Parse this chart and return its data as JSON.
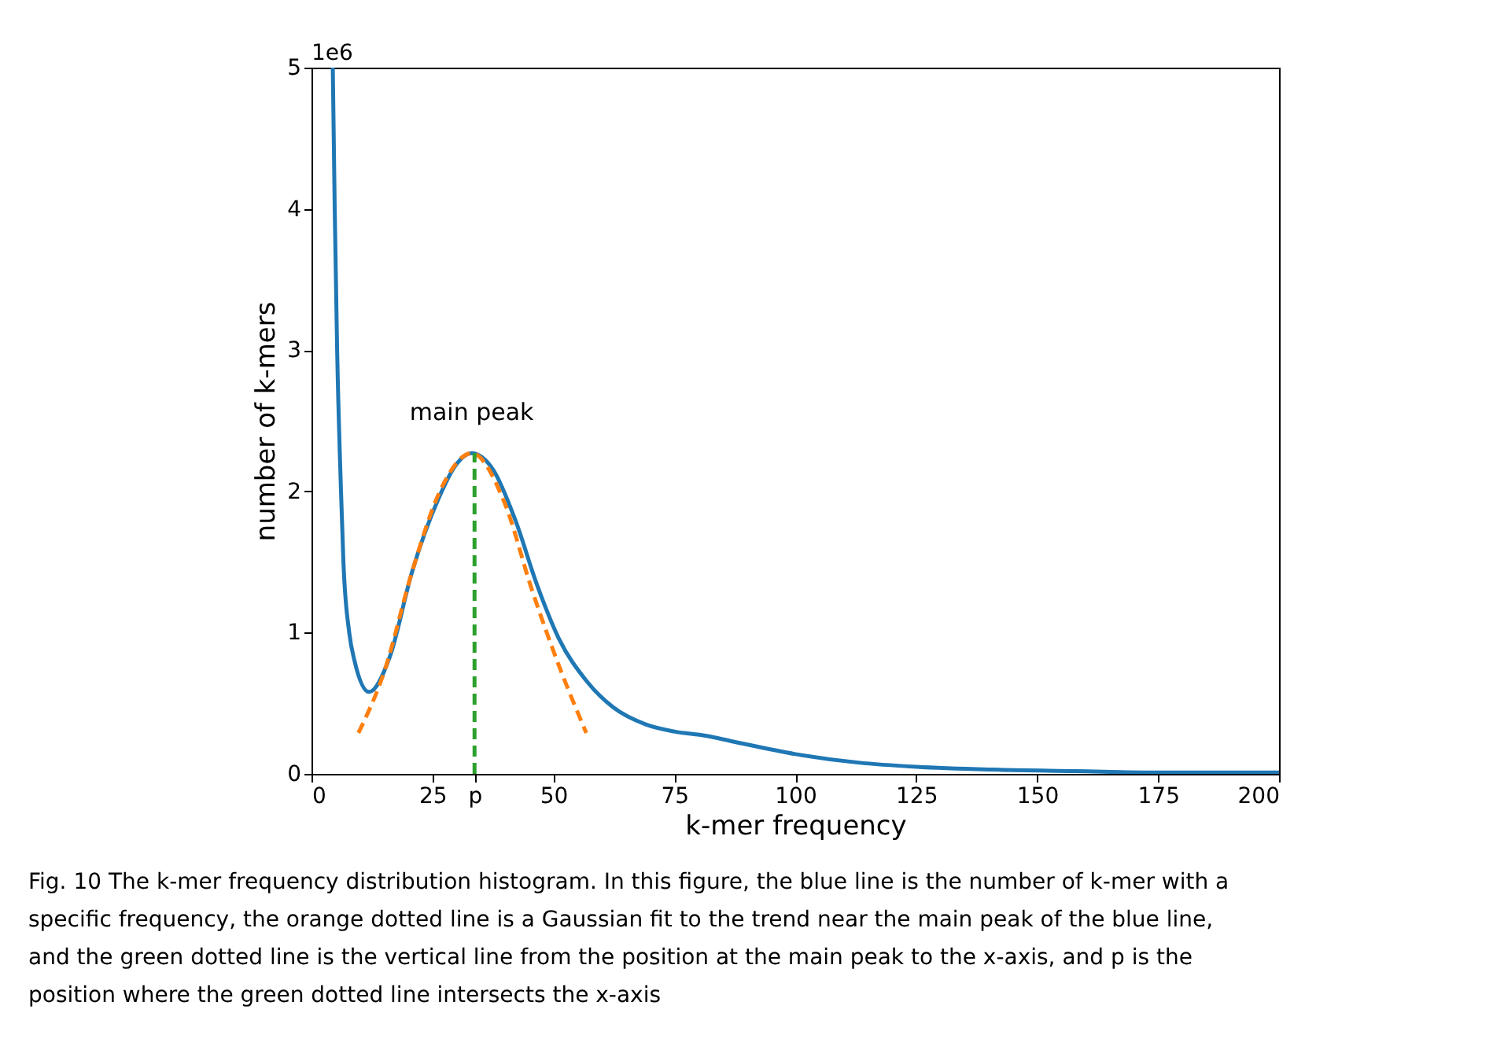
{
  "chart_data": {
    "type": "line",
    "xlabel": "k-mer frequency",
    "ylabel": "number of k-mers",
    "xlim": [
      0,
      200
    ],
    "ylim": [
      0,
      5
    ],
    "xticks": [
      0,
      25,
      {
        "value": 33.7,
        "label": "p"
      },
      50,
      75,
      100,
      125,
      150,
      175,
      200
    ],
    "yticks": [
      0,
      1,
      2,
      3,
      4,
      5
    ],
    "grid": false,
    "series": [
      {
        "color": "#1f77b4",
        "line_style": "solid",
        "x": [
          4.4,
          4.8,
          5.3,
          6.1,
          6.6,
          7.8,
          8.9,
          11.9,
          16.2,
          20.7,
          26.4,
          29.7,
          33.1,
          37.6,
          42.1,
          46.6,
          51.1,
          56.8,
          62.4,
          69.1,
          75,
          81.5,
          87,
          100,
          113,
          125,
          141,
          158,
          175,
          200
        ],
        "values": [
          5,
          4,
          3,
          2,
          1.5,
          1,
          0.8,
          0.58,
          0.83,
          1.42,
          1.96,
          2.18,
          2.27,
          2.15,
          1.8,
          1.34,
          0.96,
          0.66,
          0.47,
          0.35,
          0.3,
          0.27,
          0.23,
          0.14,
          0.08,
          0.05,
          0.03,
          0.02,
          0.01,
          0.01
        ]
      },
      {
        "color": "#ff7f0e",
        "line_style": "dashed",
        "x": [
          9.7,
          15.1,
          20.7,
          26.4,
          33.1,
          39.9,
          45.5,
          51.1,
          56.8
        ],
        "values": [
          0.29,
          0.73,
          1.42,
          1.99,
          2.27,
          1.92,
          1.31,
          0.77,
          0.29
        ]
      },
      {
        "color": "#2ca02c",
        "line_style": "dashed",
        "x": [
          33.7,
          33.7
        ],
        "values": [
          0,
          2.27
        ]
      }
    ],
    "annotations": [
      {
        "text": "main peak",
        "x": 33.1,
        "y": 2.27
      },
      "1e6",
      "Fig. 10  The k-mer frequency distribution histogram. In this figure, the blue line is the number of k-mer with a specific frequency, the orange dotted line is a Gaussian fit to the trend near the main peak of the blue line, and the green dotted line is the vertical line from the position at the main peak to the x-axis, and p is the position where the green dotted line intersects the x-axis"
    ]
  }
}
